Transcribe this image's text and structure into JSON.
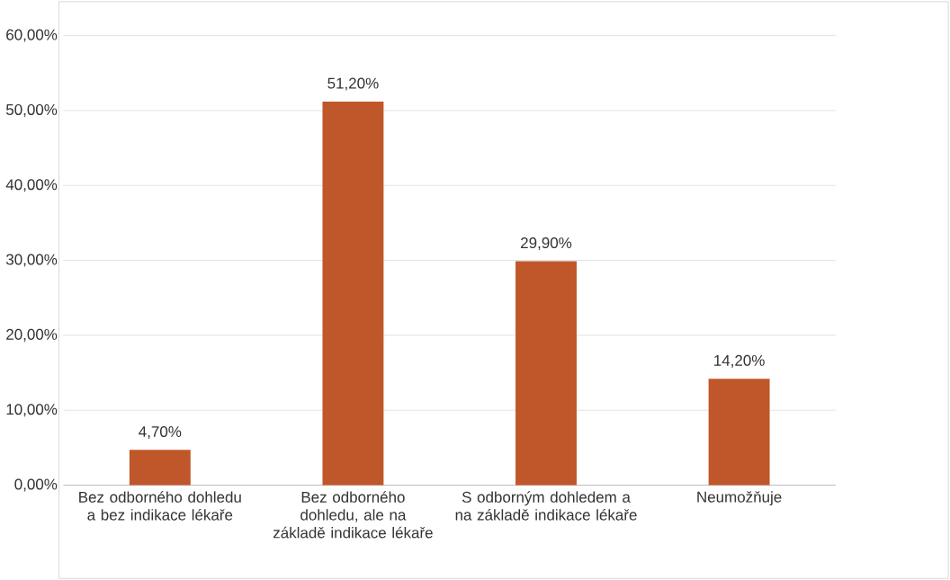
{
  "chart_data": {
    "type": "bar",
    "categories": [
      "Bez odborného dohledu a bez indikace lékaře",
      "Bez odborného dohledu, ale na základě indikace lékaře",
      "S odborným dohledem a na základě indikace lékaře",
      "Neumožňuje"
    ],
    "values": [
      4.7,
      51.2,
      29.9,
      14.2
    ],
    "color": "#c0572a",
    "value_labels": [
      "4,70%",
      "51,20%",
      "29,90%",
      "14,20%"
    ],
    "ylim": [
      0,
      60
    ],
    "yticks": [
      {
        "value": 0,
        "label": "0,00%"
      },
      {
        "value": 10,
        "label": "10,00%"
      },
      {
        "value": 20,
        "label": "20,00%"
      },
      {
        "value": 30,
        "label": "30,00%"
      },
      {
        "value": 40,
        "label": "40,00%"
      },
      {
        "value": 50,
        "label": "50,00%"
      },
      {
        "value": 60,
        "label": "60,00%"
      }
    ],
    "grid": "y"
  }
}
